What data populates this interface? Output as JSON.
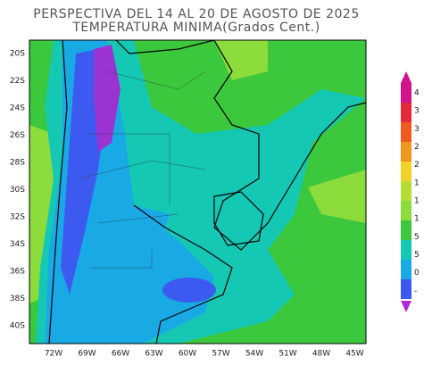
{
  "title": [
    "PERSPECTIVA DEL 14 AL 20 DE AGOSTO DE 2025",
    "TEMPERATURA MINIMA(Grados Cent.)"
  ],
  "y_labels": [
    "20S",
    "22S",
    "24S",
    "26S",
    "28S",
    "30S",
    "32S",
    "34S",
    "36S",
    "38S",
    "40S"
  ],
  "x_labels": [
    "72W",
    "69W",
    "66W",
    "63W",
    "60W",
    "57W",
    "54W",
    "51W",
    "48W",
    "45W"
  ],
  "legend": {
    "labels": [
      "4",
      "3",
      "3",
      "2",
      "2",
      "1",
      "1",
      "1",
      "5",
      "5",
      "0",
      "-"
    ]
  }
}
